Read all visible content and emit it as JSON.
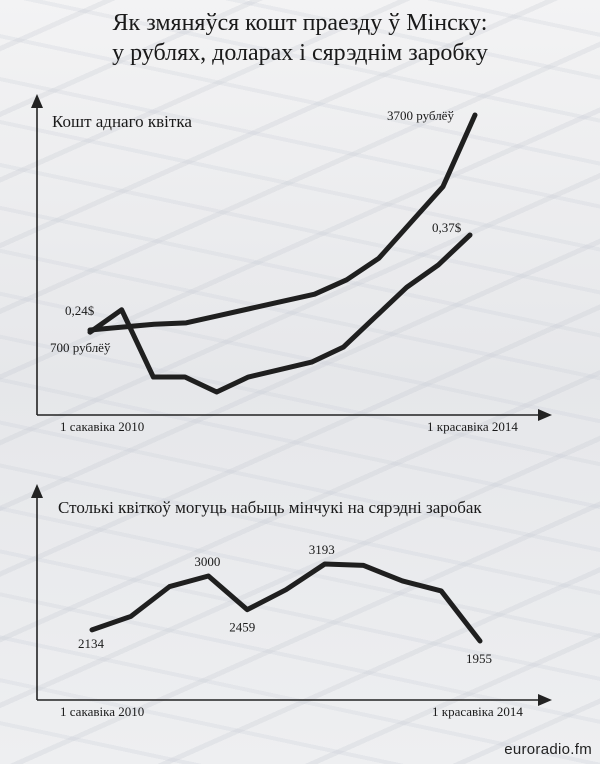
{
  "header": {
    "title_line1": "Як змяняўся кошт праезду ў Мінску:",
    "title_line2": "у рублях, доларах і сярэднім заробку"
  },
  "chart_data": [
    {
      "type": "line",
      "title": "Кошт аднаго квітка",
      "x_start_label": "1 сакавіка 2010",
      "x_end_label": "1 красавіка 2014",
      "series": [
        {
          "values": [
            700,
            740,
            780,
            800,
            900,
            1000,
            1100,
            1200,
            1400,
            1700,
            2200,
            2700,
            3700
          ],
          "start_label": "700 рублёў",
          "end_label": "3700 рублёў"
        },
        {
          "values": [
            0.24,
            0.27,
            0.18,
            0.18,
            0.16,
            0.18,
            0.19,
            0.2,
            0.22,
            0.26,
            0.3,
            0.33,
            0.37
          ],
          "start_label": "0,24$",
          "end_label": "0,37$"
        }
      ]
    },
    {
      "type": "line",
      "title": "Столькі квіткоў могуць набыць мінчукі на сярэдні заробак",
      "x_start_label": "1 сакавіка 2010",
      "x_end_label": "1 красавіка 2014",
      "values": [
        2134,
        2350,
        2830,
        3000,
        2459,
        2780,
        3193,
        3170,
        2920,
        2760,
        1955
      ],
      "point_labels": [
        {
          "index": 0,
          "text": "2134"
        },
        {
          "index": 3,
          "text": "3000"
        },
        {
          "index": 4,
          "text": "2459"
        },
        {
          "index": 6,
          "text": "3193"
        },
        {
          "index": 10,
          "text": "1955"
        }
      ]
    }
  ],
  "footer": {
    "watermark": "euroradio.fm"
  }
}
